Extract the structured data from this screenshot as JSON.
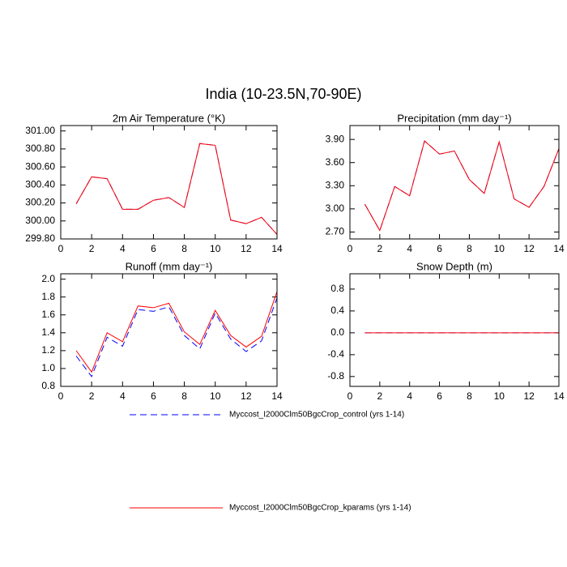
{
  "title": "India (10-23.5N,70-90E)",
  "chart_data": [
    {
      "type": "line",
      "title": "2m Air Temperature (°K)",
      "x": [
        1,
        2,
        3,
        4,
        5,
        6,
        7,
        8,
        9,
        10,
        11,
        12,
        13,
        14
      ],
      "xlim": [
        0,
        14
      ],
      "xticks": [
        0,
        2,
        4,
        6,
        8,
        10,
        12,
        14
      ],
      "ylim": [
        299.8,
        301.06
      ],
      "yticks": [
        {
          "value": 299.8,
          "label": "299.80"
        },
        {
          "value": 300.0,
          "label": "300.00"
        },
        {
          "value": 300.2,
          "label": "300.20"
        },
        {
          "value": 300.4,
          "label": "300.40"
        },
        {
          "value": 300.6,
          "label": "300.60"
        },
        {
          "value": 300.8,
          "label": "300.80"
        },
        {
          "value": 301.0,
          "label": "301.00"
        }
      ],
      "series": [
        {
          "name": "Myccost_I2000Clm50BgcCrop_control (yrs 1-14)",
          "color": "#0000ff",
          "style": "dashed",
          "values": [
            300.19,
            300.49,
            300.47,
            300.13,
            300.13,
            300.23,
            300.26,
            300.15,
            300.86,
            300.84,
            300.01,
            299.97,
            300.04,
            299.85
          ]
        },
        {
          "name": "Myccost_I2000Clm50BgcCrop_kparams (yrs 1-14)",
          "color": "#ff0000",
          "style": "solid",
          "values": [
            300.19,
            300.49,
            300.47,
            300.13,
            300.13,
            300.23,
            300.26,
            300.15,
            300.86,
            300.84,
            300.01,
            299.97,
            300.04,
            299.85
          ]
        }
      ]
    },
    {
      "type": "line",
      "title": "Precipitation (mm day⁻¹)",
      "x": [
        1,
        2,
        3,
        4,
        5,
        6,
        7,
        8,
        9,
        10,
        11,
        12,
        13,
        14
      ],
      "xlim": [
        0,
        14
      ],
      "xticks": [
        0,
        2,
        4,
        6,
        8,
        10,
        12,
        14
      ],
      "ylim": [
        2.61,
        4.08
      ],
      "yticks": [
        {
          "value": 2.7,
          "label": "2.70"
        },
        {
          "value": 3.0,
          "label": "3.00"
        },
        {
          "value": 3.3,
          "label": "3.30"
        },
        {
          "value": 3.6,
          "label": "3.60"
        },
        {
          "value": 3.9,
          "label": "3.90"
        }
      ],
      "series": [
        {
          "name": "Myccost_I2000Clm50BgcCrop_control (yrs 1-14)",
          "color": "#0000ff",
          "style": "dashed",
          "values": [
            3.06,
            2.72,
            3.29,
            3.17,
            3.88,
            3.71,
            3.75,
            3.38,
            3.2,
            3.87,
            3.13,
            3.02,
            3.29,
            3.78
          ]
        },
        {
          "name": "Myccost_I2000Clm50BgcCrop_kparams (yrs 1-14)",
          "color": "#ff0000",
          "style": "solid",
          "values": [
            3.06,
            2.72,
            3.29,
            3.17,
            3.88,
            3.71,
            3.75,
            3.38,
            3.2,
            3.87,
            3.13,
            3.02,
            3.29,
            3.78
          ]
        }
      ]
    },
    {
      "type": "line",
      "title": "Runoff (mm day⁻¹)",
      "x": [
        1,
        2,
        3,
        4,
        5,
        6,
        7,
        8,
        9,
        10,
        11,
        12,
        13,
        14
      ],
      "xlim": [
        0,
        14
      ],
      "xticks": [
        0,
        2,
        4,
        6,
        8,
        10,
        12,
        14
      ],
      "ylim": [
        0.8,
        2.06
      ],
      "yticks": [
        {
          "value": 0.8,
          "label": "0.8"
        },
        {
          "value": 1.0,
          "label": "1.0"
        },
        {
          "value": 1.2,
          "label": "1.2"
        },
        {
          "value": 1.4,
          "label": "1.4"
        },
        {
          "value": 1.6,
          "label": "1.6"
        },
        {
          "value": 1.8,
          "label": "1.8"
        },
        {
          "value": 2.0,
          "label": "2.0"
        }
      ],
      "series": [
        {
          "name": "Myccost_I2000Clm50BgcCrop_control (yrs 1-14)",
          "color": "#0000ff",
          "style": "dashed",
          "values": [
            1.14,
            0.91,
            1.35,
            1.25,
            1.66,
            1.64,
            1.69,
            1.37,
            1.22,
            1.62,
            1.33,
            1.19,
            1.31,
            1.79
          ]
        },
        {
          "name": "Myccost_I2000Clm50BgcCrop_kparams (yrs 1-14)",
          "color": "#ff0000",
          "style": "solid",
          "values": [
            1.2,
            0.96,
            1.4,
            1.3,
            1.7,
            1.68,
            1.73,
            1.41,
            1.27,
            1.65,
            1.37,
            1.24,
            1.36,
            1.86
          ]
        }
      ]
    },
    {
      "type": "line",
      "title": "Snow Depth (m)",
      "x": [
        1,
        2,
        3,
        4,
        5,
        6,
        7,
        8,
        9,
        10,
        11,
        12,
        13,
        14
      ],
      "xlim": [
        0,
        14
      ],
      "xticks": [
        0,
        2,
        4,
        6,
        8,
        10,
        12,
        14
      ],
      "ylim": [
        -0.98,
        1.08
      ],
      "yticks": [
        {
          "value": -0.8,
          "label": "-0.8"
        },
        {
          "value": -0.4,
          "label": "-0.4"
        },
        {
          "value": 0.0,
          "label": "0.0"
        },
        {
          "value": 0.4,
          "label": "0.4"
        },
        {
          "value": 0.8,
          "label": "0.8"
        }
      ],
      "series": [
        {
          "name": "Myccost_I2000Clm50BgcCrop_control (yrs 1-14)",
          "color": "#0000ff",
          "style": "dashed",
          "values": [
            0,
            0,
            0,
            0,
            0,
            0,
            0,
            0,
            0,
            0,
            0,
            0,
            0,
            0
          ]
        },
        {
          "name": "Myccost_I2000Clm50BgcCrop_kparams (yrs 1-14)",
          "color": "#ff0000",
          "style": "solid",
          "values": [
            0,
            0,
            0,
            0,
            0,
            0,
            0,
            0,
            0,
            0,
            0,
            0,
            0,
            0
          ]
        }
      ]
    }
  ]
}
